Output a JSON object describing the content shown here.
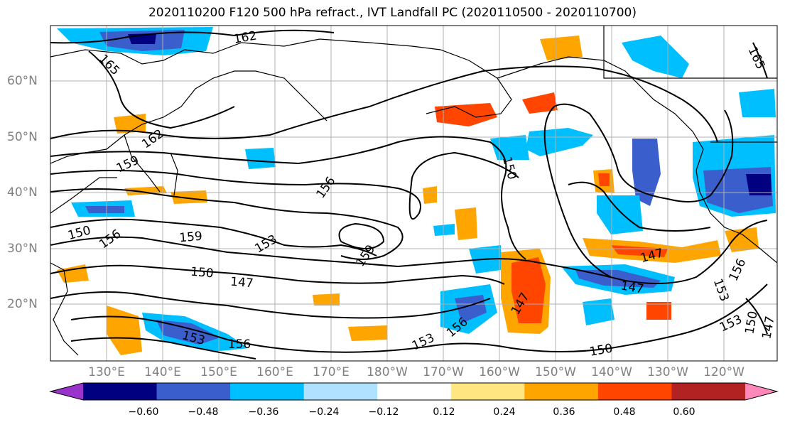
{
  "title": "2020110200 F120 500 hPa refract., IVT Landfall PC (2020110500 - 2020110700)",
  "lat_labels": [
    "60°N",
    "50°N",
    "40°N",
    "30°N",
    "20°N"
  ],
  "lon_labels": [
    "130°E",
    "140°E",
    "150°E",
    "160°E",
    "170°E",
    "180°W",
    "170°W",
    "160°W",
    "150°W",
    "140°W",
    "130°W",
    "120°W"
  ],
  "contour_labels": [
    "162",
    "165",
    "162",
    "159",
    "150",
    "156",
    "159",
    "153",
    "150",
    "147",
    "153",
    "156",
    "153",
    "156",
    "156",
    "159",
    "150",
    "147",
    "147",
    "147",
    "153",
    "156",
    "153",
    "150",
    "147",
    "150",
    "165"
  ],
  "colorbar": {
    "colors": [
      "#9933cc",
      "#000080",
      "#3a5fcd",
      "#00bfff",
      "#b0e2ff",
      "#ffffff",
      "#ffe680",
      "#ffa500",
      "#ff4500",
      "#b22222",
      "#ff88bb"
    ],
    "tick_labels": [
      "−0.60",
      "−0.48",
      "−0.36",
      "−0.24",
      "−0.12",
      "0.12",
      "0.24",
      "0.36",
      "0.48",
      "0.60"
    ]
  }
}
